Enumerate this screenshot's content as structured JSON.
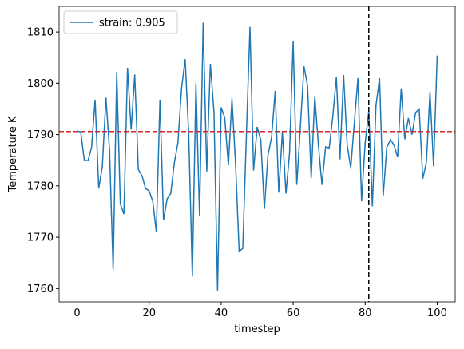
{
  "chart_data": {
    "type": "line",
    "xlabel": "timestep",
    "ylabel": "Temperature K",
    "x": [
      0,
      1,
      2,
      3,
      4,
      5,
      6,
      7,
      8,
      9,
      10,
      11,
      12,
      13,
      14,
      15,
      16,
      17,
      18,
      19,
      20,
      21,
      22,
      23,
      24,
      25,
      26,
      27,
      28,
      29,
      30,
      31,
      32,
      33,
      34,
      35,
      36,
      37,
      38,
      39,
      40,
      41,
      42,
      43,
      44,
      45,
      46,
      47,
      48,
      49,
      50,
      51,
      52,
      53,
      54,
      55,
      56,
      57,
      58,
      59,
      60,
      61,
      62,
      63,
      64,
      65,
      66,
      67,
      68,
      69,
      70,
      71,
      72,
      73,
      74,
      75,
      76,
      77,
      78,
      79,
      80,
      81,
      82,
      83,
      84,
      85,
      86,
      87,
      88,
      89,
      90,
      91,
      92,
      93,
      94,
      95,
      96,
      97,
      98,
      99,
      100
    ],
    "series": [
      {
        "name": "strain: 0.905",
        "color": "#1f77b4",
        "values": [
          1790.7,
          1790.5,
          1785,
          1784.9,
          1787.5,
          1796.8,
          1779.5,
          1783.8,
          1797.2,
          1787,
          1763.7,
          1802.2,
          1776.5,
          1774.5,
          1803,
          1791,
          1801.7,
          1783.2,
          1782,
          1779.5,
          1779,
          1777,
          1771,
          1796.8,
          1773.3,
          1777.5,
          1778.5,
          1784.5,
          1788.5,
          1799,
          1804.7,
          1790,
          1762.3,
          1800,
          1774.2,
          1811.8,
          1782.8,
          1803.8,
          1794.5,
          1759.6,
          1795.3,
          1793.3,
          1784,
          1797,
          1784.3,
          1767.2,
          1767.8,
          1789.8,
          1811,
          1783,
          1791.5,
          1789,
          1775.5,
          1786,
          1789.5,
          1798.5,
          1778.7,
          1790.5,
          1778.5,
          1786.5,
          1808.3,
          1780.2,
          1791.5,
          1803.3,
          1799.5,
          1781.5,
          1797.5,
          1788,
          1780.2,
          1787.6,
          1787.4,
          1793.5,
          1801.2,
          1785.2,
          1801.6,
          1788,
          1783.5,
          1792.5,
          1801,
          1777,
          1788.4,
          1794.6,
          1776,
          1795.7,
          1801,
          1778,
          1787.5,
          1789,
          1788,
          1785.6,
          1799,
          1789.1,
          1793.2,
          1790,
          1794.3,
          1795,
          1781.4,
          1784.6,
          1798.3,
          1783.8,
          1805.4
        ]
      }
    ],
    "hline": {
      "value": 1790.6,
      "color": "#d62728"
    },
    "vline": {
      "value": 81,
      "color": "#000000"
    },
    "xlim": [
      -5,
      105
    ],
    "ylim": [
      1757.4,
      1815
    ],
    "xticks": [
      0,
      20,
      40,
      60,
      80,
      100
    ],
    "yticks": [
      1760,
      1770,
      1780,
      1790,
      1800,
      1810
    ],
    "legend": "upper left",
    "grid": false
  }
}
